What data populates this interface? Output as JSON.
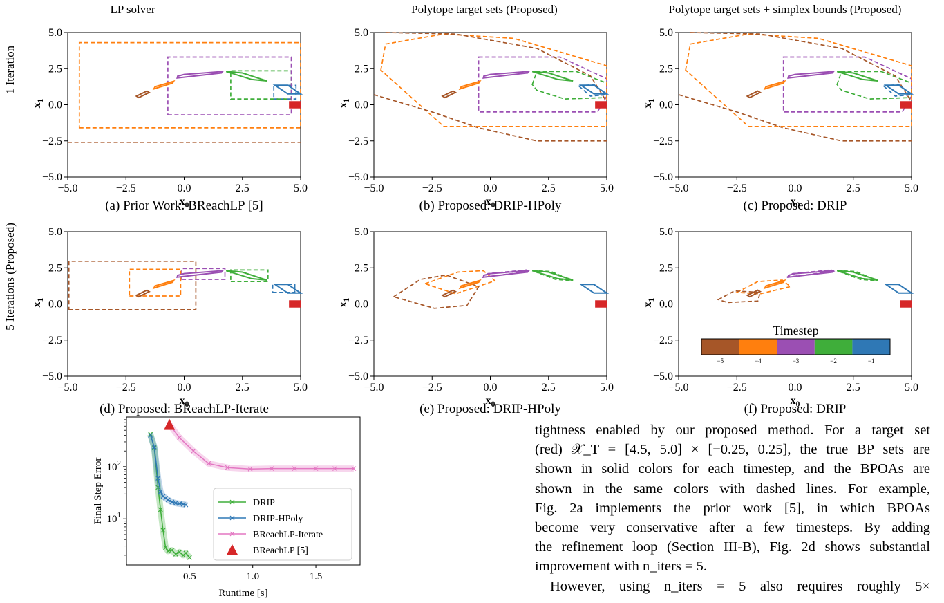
{
  "figure": {
    "col_titles": [
      "LP solver",
      "Polytope target sets (Proposed)",
      "Polytope target sets + simplex bounds (Proposed)"
    ],
    "row_labels": [
      "1 Iteration",
      "5 Iterations (Proposed)"
    ],
    "captions": [
      "(a) Prior Work: BReachLP [5]",
      "(b) Proposed: DRIP-HPoly",
      "(c) Proposed: DRIP",
      "(d) Proposed: BReachLP-Iterate",
      "(e) Proposed: DRIP-HPoly",
      "(f) Proposed: DRIP"
    ],
    "axis": {
      "xlabel": "x0",
      "ylabel": "x1",
      "ticks": [
        "−5.0",
        "−2.5",
        "0.0",
        "2.5",
        "5.0"
      ]
    },
    "colorbar": {
      "title": "Timestep",
      "ticks": [
        "−5",
        "−4",
        "−3",
        "−2",
        "−1"
      ]
    },
    "colors": {
      "t5": "#a65628",
      "t4": "#ff7f0e",
      "t3": "#9b4fb3",
      "t2": "#3fae3a",
      "t1": "#2f78b5",
      "target": "#d62728"
    }
  },
  "chart_data": {
    "type": "line",
    "xlabel": "Runtime [s]",
    "ylabel": "Final Step Error",
    "xticks": [
      "0.5",
      "1.0",
      "1.5"
    ],
    "yticks": [
      "10^1",
      "10^2"
    ],
    "xlim": [
      0.0,
      1.85
    ],
    "ylim": [
      1.3,
      900
    ],
    "yscale": "log",
    "legend_position": "center-right",
    "series": [
      {
        "name": "DRIP",
        "color": "#3fae3a",
        "x": [
          0.19,
          0.22,
          0.25,
          0.27,
          0.29,
          0.31,
          0.33,
          0.36,
          0.39,
          0.42,
          0.45,
          0.47,
          0.5
        ],
        "y": [
          420,
          230,
          40,
          15,
          6.0,
          2.8,
          2.4,
          2.5,
          2.1,
          2.3,
          2.0,
          2.2,
          1.8
        ]
      },
      {
        "name": "DRIP-HPoly",
        "color": "#2f78b5",
        "x": [
          0.19,
          0.22,
          0.25,
          0.27,
          0.29,
          0.31,
          0.33,
          0.36,
          0.39,
          0.42,
          0.45,
          0.47
        ],
        "y": [
          400,
          240,
          60,
          33,
          27,
          25,
          23,
          21,
          20,
          19.5,
          19,
          18.5
        ]
      },
      {
        "name": "BReachLP-Iterate",
        "color": "#e377c2",
        "x": [
          0.34,
          0.42,
          0.53,
          0.65,
          0.8,
          0.98,
          1.15,
          1.33,
          1.5,
          1.65,
          1.8
        ],
        "y": [
          650,
          360,
          200,
          115,
          96,
          90,
          92,
          92,
          92,
          92,
          92
        ]
      },
      {
        "name": "BReachLP [5]",
        "color": "#d62728",
        "marker": "triangle",
        "x": [
          0.34
        ],
        "y": [
          650
        ]
      }
    ]
  },
  "body_text": {
    "lines": [
      "tightness enabled by our proposed method. For a target set",
      "(red) 𝒳_T = [4.5, 5.0] × [−0.25, 0.25], the true BP sets are",
      "shown in solid colors for each timestep, and the BPOAs are",
      "shown in the same colors with dashed lines. For example,",
      "Fig. 2a implements the prior work [5], in which BPOAs",
      "become very conservative after a few timesteps. By adding",
      "the refinement loop (Section III-B), Fig. 2d shows substantial",
      "improvement with n_iters = 5.",
      "However, using n_iters = 5 also requires roughly 5×"
    ]
  }
}
